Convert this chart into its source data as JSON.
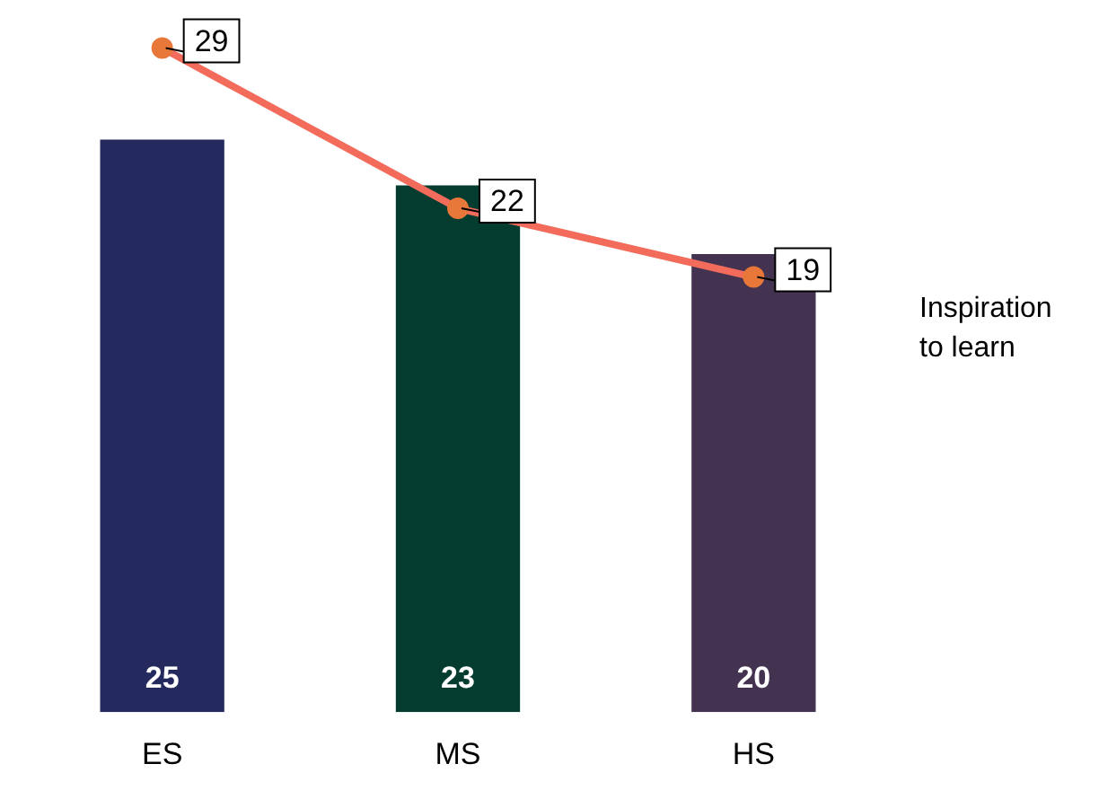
{
  "chart_data": {
    "type": "bar",
    "tick_labels": "x",
    "categories": [
      "ES",
      "MS",
      "HS"
    ],
    "data_labels": true,
    "legend": false,
    "grid": false,
    "marker": "circle",
    "series": [
      {
        "colors": [
          "#252a5e",
          "#053c30",
          "#433350"
        ],
        "values": [
          25,
          23,
          20
        ]
      },
      {
        "type": "line",
        "name": "Inspiration to learn",
        "color": "#f26b5b",
        "values": [
          29,
          22,
          19
        ]
      }
    ]
  }
}
